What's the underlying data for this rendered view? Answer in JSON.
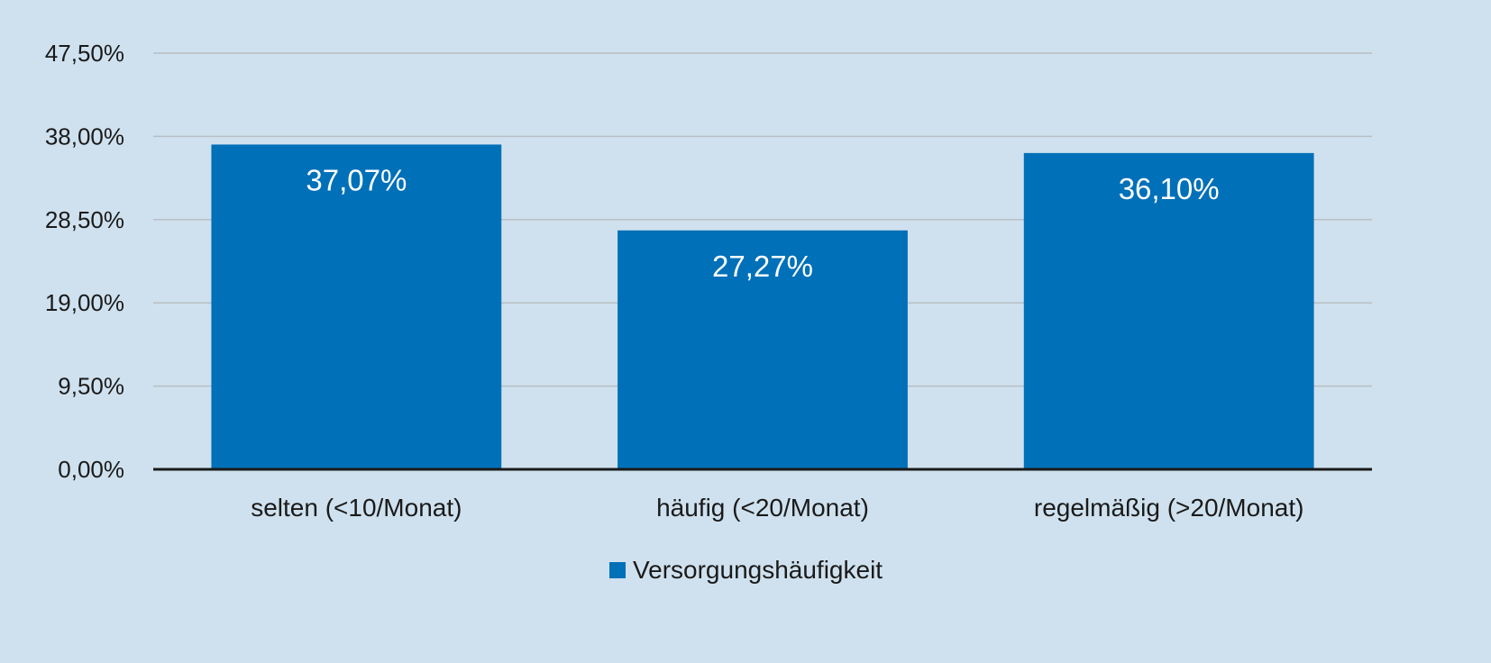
{
  "chart_data": {
    "type": "bar",
    "categories": [
      "selten (<10/Monat)",
      "häufig (<20/Monat)",
      "regelmäßig (>20/Monat)"
    ],
    "series": [
      {
        "name": "Versorgungshäufigkeit",
        "values": [
          37.07,
          27.27,
          36.1
        ]
      }
    ],
    "data_labels": [
      "37,07%",
      "27,27%",
      "36,10%"
    ],
    "y_ticks": [
      0,
      9.5,
      19,
      28.5,
      38,
      47.5
    ],
    "y_tick_labels": [
      "0,00%",
      "9,50%",
      "19,00%",
      "28,50%",
      "38,00%",
      "47,50%"
    ],
    "ylim": [
      0,
      47.5
    ],
    "grid": true,
    "legend_position": "bottom",
    "colors": {
      "bar": "#0070b8",
      "background": "#cfe1ee",
      "grid": "#b8bec4",
      "axis": "#1a1a1a"
    }
  }
}
